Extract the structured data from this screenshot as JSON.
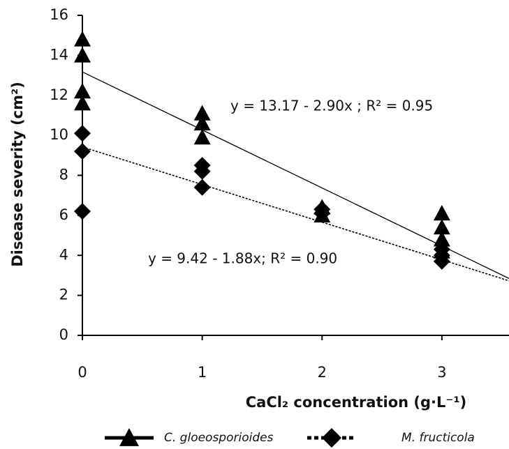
{
  "chart_data": {
    "type": "scatter",
    "xlabel": "CaCl₂ concentration (g·L⁻¹)",
    "ylabel": "Disease severity (cm²)",
    "xlim": [
      0,
      3.56
    ],
    "xticks": [
      0,
      1,
      2,
      3
    ],
    "ylim": [
      0,
      16
    ],
    "yticks": [
      0,
      2,
      4,
      6,
      8,
      10,
      12,
      14,
      16
    ],
    "series": [
      {
        "name": "C. gloeosporioides",
        "color": "#000000",
        "marker": "triangle",
        "line_style": "solid",
        "x": [
          0,
          0,
          0,
          0,
          1,
          1,
          1,
          2,
          2,
          3,
          3,
          3,
          3
        ],
        "values": [
          14.8,
          14.0,
          12.2,
          11.6,
          11.1,
          10.6,
          9.9,
          6.4,
          6.0,
          6.1,
          5.4,
          4.8,
          4.2
        ],
        "trendline": {
          "intercept": 13.17,
          "slope": -2.9,
          "label": "y = 13.17 - 2.90x ; R² = 0.95"
        }
      },
      {
        "name": "M. fructicola",
        "color": "#000000",
        "marker": "diamond",
        "line_style": "dotted",
        "x": [
          0,
          0,
          0,
          1,
          1,
          1,
          2,
          2,
          3,
          3,
          3
        ],
        "values": [
          10.1,
          9.2,
          6.2,
          8.5,
          8.2,
          7.4,
          6.3,
          6.1,
          4.3,
          4.0,
          3.7
        ],
        "trendline": {
          "intercept": 9.42,
          "slope": -1.88,
          "label": "y = 9.42 - 1.88x; R² = 0.90"
        }
      }
    ]
  }
}
